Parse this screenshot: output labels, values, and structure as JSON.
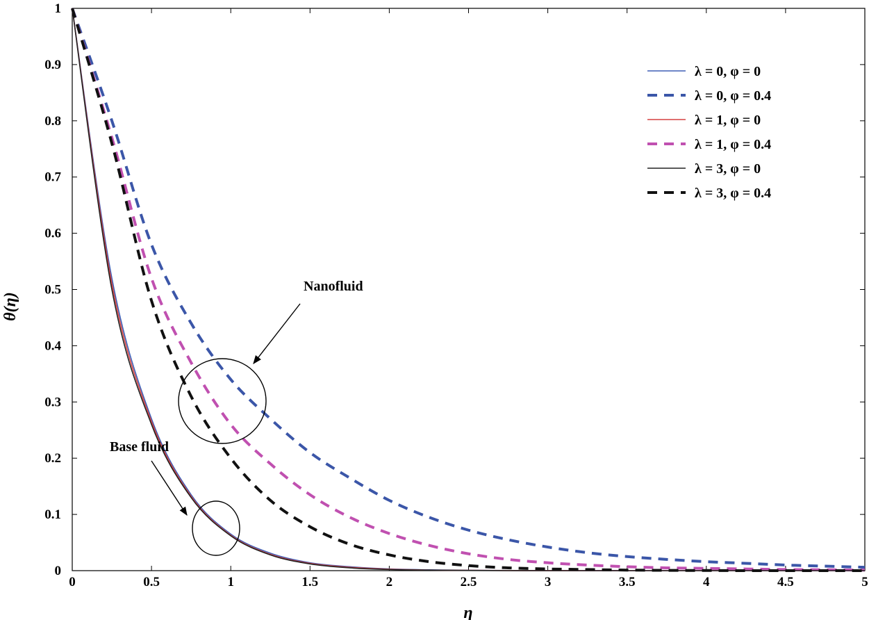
{
  "chart_data": {
    "type": "line",
    "title": "",
    "xlabel": "η",
    "ylabel": "θ(η)",
    "xlim": [
      0,
      5
    ],
    "ylim": [
      0,
      1
    ],
    "x_ticks": [
      "0",
      "0.5",
      "1",
      "1.5",
      "2",
      "2.5",
      "3",
      "3.5",
      "4",
      "4.5",
      "5"
    ],
    "y_ticks": [
      "0",
      "0.1",
      "0.2",
      "0.3",
      "0.4",
      "0.5",
      "0.6",
      "0.7",
      "0.8",
      "0.9",
      "1"
    ],
    "grid": false,
    "legend_position": "top-right",
    "x": [
      0,
      0.25,
      0.5,
      0.75,
      1,
      1.25,
      1.5,
      1.75,
      2,
      2.25,
      2.5,
      2.75,
      3,
      3.25,
      3.5,
      3.75,
      4,
      4.25,
      4.5,
      4.75,
      5
    ],
    "series": [
      {
        "name": "λ = 0, φ = 0",
        "color": "#3f5fb5",
        "dash": "solid",
        "values": [
          1,
          0.52,
          0.27,
          0.135,
          0.065,
          0.031,
          0.014,
          0.007,
          0.003,
          0.0015,
          0.0007,
          0.0003,
          0.0002,
          0.0001,
          0,
          0,
          0,
          0,
          0,
          0,
          0
        ]
      },
      {
        "name": "λ = 0, φ = 0.4",
        "color": "#3b56a8",
        "dash": "dashed",
        "values": [
          1,
          0.8,
          0.58,
          0.44,
          0.34,
          0.27,
          0.21,
          0.165,
          0.125,
          0.095,
          0.072,
          0.055,
          0.042,
          0.032,
          0.025,
          0.02,
          0.016,
          0.013,
          0.01,
          0.008,
          0.006
        ]
      },
      {
        "name": "λ = 1, φ = 0",
        "color": "#d64040",
        "dash": "solid",
        "values": [
          1,
          0.51,
          0.265,
          0.132,
          0.063,
          0.029,
          0.013,
          0.006,
          0.0025,
          0.001,
          0.0005,
          0.0002,
          0.0001,
          0,
          0,
          0,
          0,
          0,
          0,
          0,
          0
        ]
      },
      {
        "name": "λ = 1, φ = 0.4",
        "color": "#c050b0",
        "dash": "dashed",
        "values": [
          1,
          0.77,
          0.52,
          0.37,
          0.26,
          0.19,
          0.135,
          0.095,
          0.066,
          0.045,
          0.03,
          0.02,
          0.014,
          0.01,
          0.007,
          0.005,
          0.004,
          0.003,
          0.002,
          0.0015,
          0.001
        ]
      },
      {
        "name": "λ = 3, φ = 0",
        "color": "#222222",
        "dash": "solid",
        "values": [
          1,
          0.5,
          0.26,
          0.13,
          0.062,
          0.028,
          0.012,
          0.005,
          0.002,
          0.001,
          0.0004,
          0.0001,
          0,
          0,
          0,
          0,
          0,
          0,
          0,
          0,
          0
        ]
      },
      {
        "name": "λ = 3, φ = 0.4",
        "color": "#111111",
        "dash": "dashed",
        "values": [
          1,
          0.76,
          0.48,
          0.31,
          0.2,
          0.125,
          0.078,
          0.047,
          0.028,
          0.016,
          0.009,
          0.005,
          0.003,
          0.002,
          0.001,
          0.0005,
          0.0003,
          0,
          0,
          0,
          0
        ]
      }
    ],
    "annotations": [
      {
        "text": "Nanofluid",
        "target": [
          1.12,
          0.37
        ]
      },
      {
        "text": "Base fluid",
        "target": [
          0.75,
          0.09
        ]
      }
    ]
  }
}
